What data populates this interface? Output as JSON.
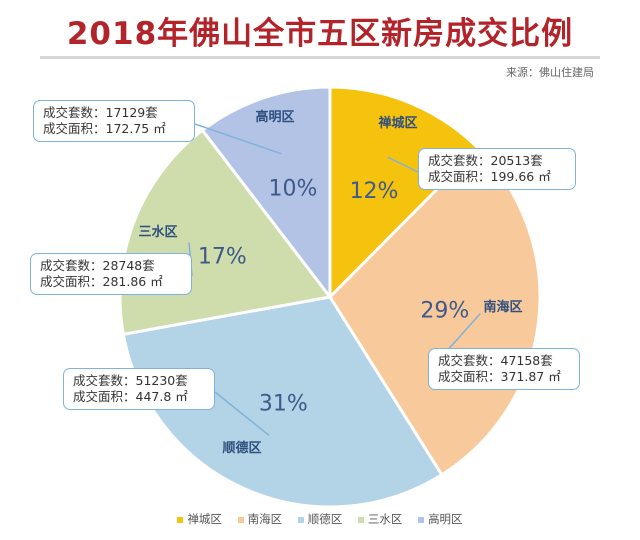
{
  "chart_data": {
    "type": "pie",
    "title": "2018年佛山全市五区新房成交比例",
    "source": "来源：佛山住建局",
    "slices": [
      {
        "name": "禅城区",
        "percent_label": "12%",
        "units_text": "成交套数：20513套",
        "area_text": "成交面积：199.66 ㎡",
        "units": 20513,
        "area": 199.66,
        "color": "#f5c20e"
      },
      {
        "name": "南海区",
        "percent_label": "29%",
        "units_text": "成交套数：47158套",
        "area_text": "成交面积：371.87 ㎡",
        "units": 47158,
        "area": 371.87,
        "color": "#f8c99a"
      },
      {
        "name": "顺德区",
        "percent_label": "31%",
        "units_text": "成交套数：51230套",
        "area_text": "成交面积：447.8 ㎡",
        "units": 51230,
        "area": 447.8,
        "color": "#b3d3e6"
      },
      {
        "name": "三水区",
        "percent_label": "17%",
        "units_text": "成交套数：28748套",
        "area_text": "成交面积：281.86 ㎡",
        "units": 28748,
        "area": 281.86,
        "color": "#cfdcab"
      },
      {
        "name": "高明区",
        "percent_label": "10%",
        "units_text": "成交套数：17129套",
        "area_text": "成交面积：172.75 ㎡",
        "units": 17129,
        "area": 172.75,
        "color": "#b2c3e6"
      }
    ],
    "legend_position": "bottom"
  }
}
